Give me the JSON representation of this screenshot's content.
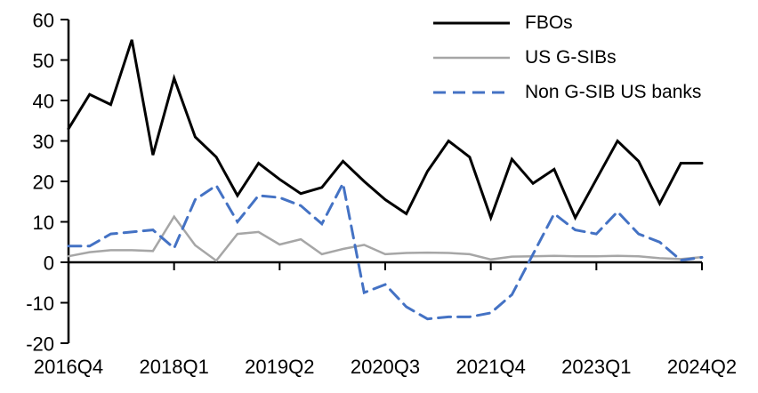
{
  "chart_data": {
    "type": "line",
    "title": "",
    "xlabel": "",
    "ylabel": "",
    "grid": false,
    "legend_position": "top-right",
    "axis_color": "#000000",
    "background_color": "#ffffff",
    "ylim": [
      -20,
      60
    ],
    "y_ticks": [
      -20,
      -10,
      0,
      10,
      20,
      30,
      40,
      50,
      60
    ],
    "x": [
      "2016Q4",
      "2017Q1",
      "2017Q2",
      "2017Q3",
      "2017Q4",
      "2018Q1",
      "2018Q2",
      "2018Q3",
      "2018Q4",
      "2019Q1",
      "2019Q2",
      "2019Q3",
      "2019Q4",
      "2020Q1",
      "2020Q2",
      "2020Q3",
      "2020Q4",
      "2021Q1",
      "2021Q2",
      "2021Q3",
      "2021Q4",
      "2022Q1",
      "2022Q2",
      "2022Q3",
      "2022Q4",
      "2023Q1",
      "2023Q2",
      "2023Q3",
      "2023Q4",
      "2024Q1",
      "2024Q2"
    ],
    "x_tick_indices": [
      0,
      5,
      10,
      15,
      20,
      25,
      30
    ],
    "x_tick_labels": [
      "2016Q4",
      "2018Q1",
      "2019Q2",
      "2020Q3",
      "2021Q4",
      "2023Q1",
      "2024Q2"
    ],
    "series": [
      {
        "name": "FBOs",
        "color": "#000000",
        "dash": "solid",
        "width": 3,
        "values": [
          33,
          41.5,
          39,
          55,
          26.5,
          45.5,
          31,
          26,
          16.5,
          24.5,
          20.5,
          17,
          18.5,
          25,
          20,
          15.5,
          12,
          22.5,
          30,
          26,
          11,
          25.5,
          19.5,
          23,
          11,
          20.5,
          30,
          25,
          14.5,
          24.5,
          24.5
        ]
      },
      {
        "name": "US G-SIBs",
        "color": "#A6A6A6",
        "dash": "solid",
        "width": 2.5,
        "values": [
          1.5,
          2.5,
          3,
          3,
          2.8,
          11.3,
          4.2,
          0.4,
          7,
          7.5,
          4.4,
          5.7,
          2,
          3.3,
          4.3,
          2,
          2.3,
          2.4,
          2.3,
          2,
          0.7,
          1.4,
          1.5,
          1.6,
          1.5,
          1.5,
          1.6,
          1.5,
          1,
          0.8,
          1.3
        ]
      },
      {
        "name": "Non G-SIB US banks",
        "color": "#4472C4",
        "dash": "dashed",
        "width": 3,
        "values": [
          4,
          4,
          7,
          7.5,
          8,
          3.5,
          15.5,
          19,
          10,
          16.5,
          16,
          14,
          9.5,
          19.5,
          -7.5,
          -5.5,
          -11,
          -14,
          -13.5,
          -13.5,
          -12.5,
          -8,
          2,
          12,
          8,
          7,
          12.5,
          7,
          5,
          0.5,
          1.2
        ]
      }
    ]
  }
}
